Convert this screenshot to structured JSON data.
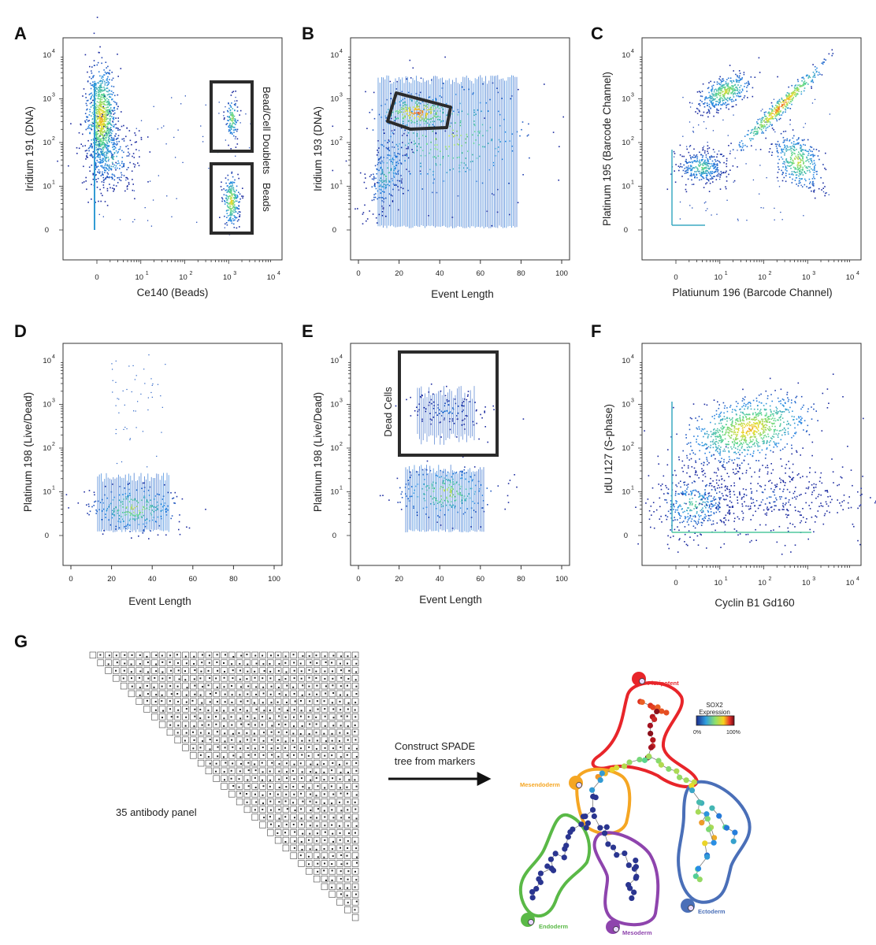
{
  "panels": [
    {
      "id": "A",
      "letter": "A",
      "xlabel": "Ce140 (Beads)",
      "ylabel": "Iridium 191 (DNA)",
      "xaxis": "log",
      "yaxis": "log",
      "gates": [
        "Bead/Cell Doublets",
        "Beads"
      ]
    },
    {
      "id": "B",
      "letter": "B",
      "xlabel": "Event Length",
      "ylabel": "Iridium 193 (DNA)",
      "xaxis": "linear",
      "yaxis": "log"
    },
    {
      "id": "C",
      "letter": "C",
      "xlabel": "Platiunum 196 (Barcode Channel)",
      "ylabel": "Platinum 195 (Barcode Channel)",
      "xaxis": "log",
      "yaxis": "log"
    },
    {
      "id": "D",
      "letter": "D",
      "xlabel": "Event Length",
      "ylabel": "Platinum 198 (Live/Dead)",
      "xaxis": "linear",
      "yaxis": "log"
    },
    {
      "id": "E",
      "letter": "E",
      "xlabel": "Event Length",
      "ylabel": "Platinum 198 (Live/Dead)",
      "xaxis": "linear",
      "yaxis": "log",
      "gates": [
        "Dead Cells"
      ]
    },
    {
      "id": "F",
      "letter": "F",
      "xlabel": "Cyclin B1 Gd160",
      "ylabel": "IdU I127 (S-phase)",
      "xaxis": "log",
      "yaxis": "log"
    }
  ],
  "linear_ticks": [
    "0",
    "20",
    "40",
    "60",
    "80",
    "100"
  ],
  "log_tick_base": "10",
  "log_tick_exps": [
    "1",
    "2",
    "3",
    "4"
  ],
  "zero_label": "0",
  "panelG": {
    "letter": "G",
    "matrix_label": "35 antibody panel",
    "arrow_label_line1": "Construct SPADE",
    "arrow_label_line2": "tree from markers",
    "colorbar_title_line1": "SOX2",
    "colorbar_title_line2": "Expression",
    "colorbar_min": "0%",
    "colorbar_max": "100%",
    "matrix_size": 35,
    "groups": [
      {
        "name": "Pluripotent",
        "color": "#e8252a"
      },
      {
        "name": "Mesendoderm",
        "color": "#f5a623"
      },
      {
        "name": "Endoderm",
        "color": "#5ab947"
      },
      {
        "name": "Mesoderm",
        "color": "#8e44ad"
      },
      {
        "name": "Ectoderm",
        "color": "#4a6fb8"
      }
    ]
  },
  "colors": {
    "gate": "#2b2b2b",
    "low": "#1f2f9e",
    "mid": "#2ecc71",
    "high": "#e0301e",
    "axis": "#333333"
  }
}
